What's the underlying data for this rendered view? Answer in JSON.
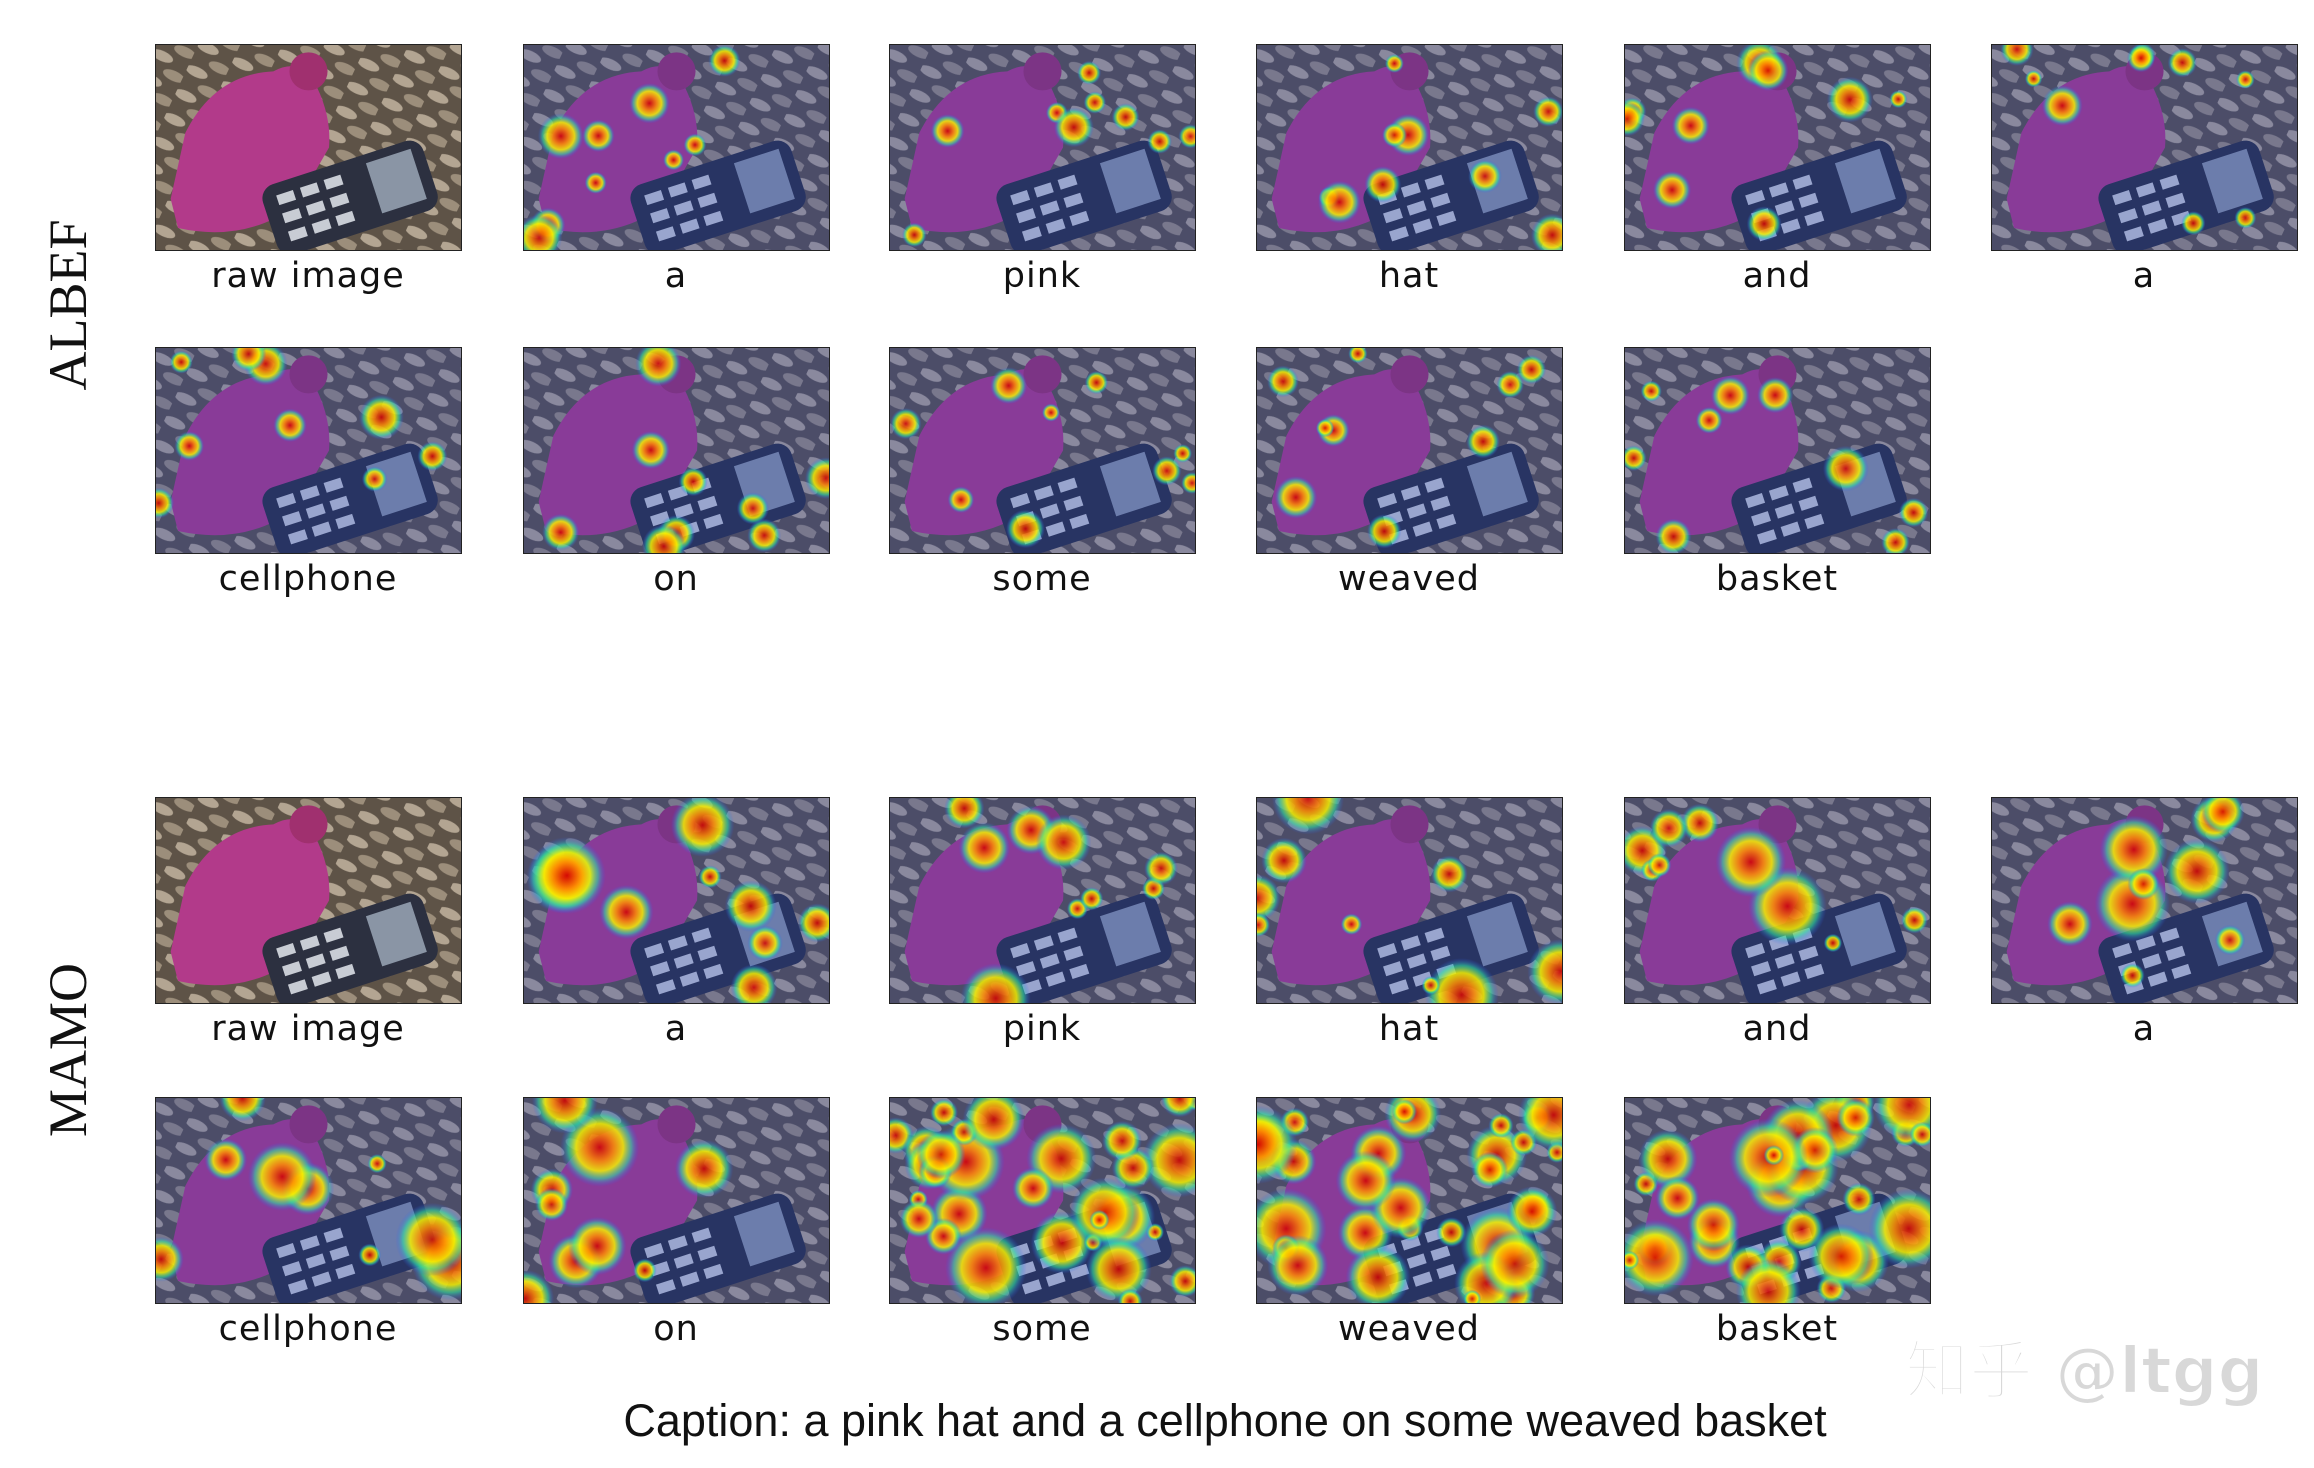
{
  "sections": [
    {
      "name": "ALBEF",
      "rows": [
        [
          "raw image",
          "a",
          "pink",
          "hat",
          "and",
          "a"
        ],
        [
          "cellphone",
          "on",
          "some",
          "weaved",
          "basket"
        ]
      ]
    },
    {
      "name": "MAMO",
      "rows": [
        [
          "raw image",
          "a",
          "pink",
          "hat",
          "and",
          "a"
        ],
        [
          "cellphone",
          "on",
          "some",
          "weaved",
          "basket"
        ]
      ]
    }
  ],
  "caption": "Caption: a pink hat and a cellphone on some weaved basket",
  "watermark": "知乎 @ltgg"
}
